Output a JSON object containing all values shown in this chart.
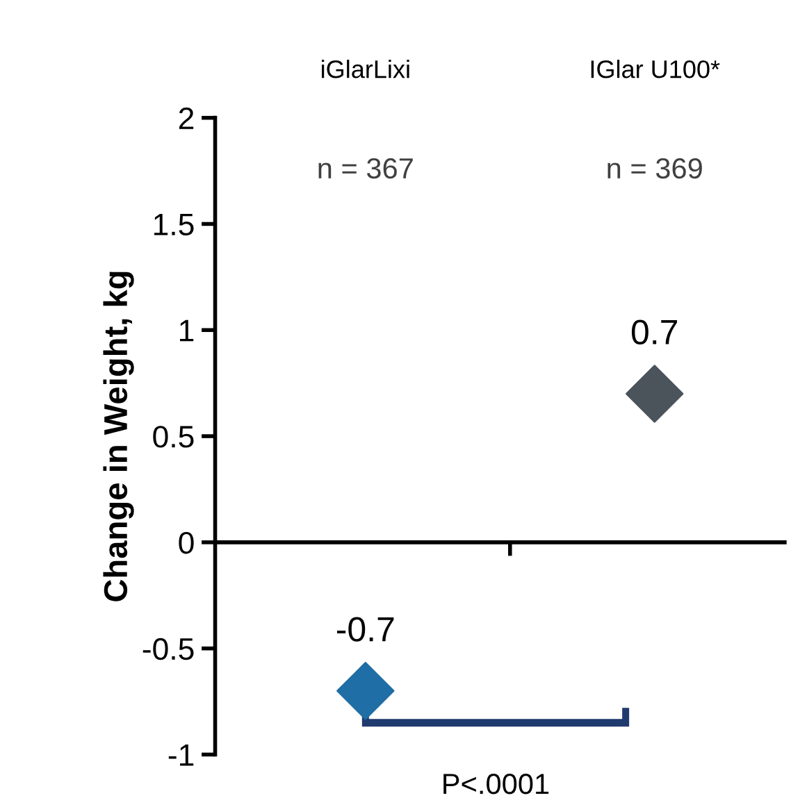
{
  "chart_data": {
    "type": "scatter",
    "ylabel": "Change in Weight, kg",
    "categories": [
      "iGlarLixi",
      "IGlar U100*"
    ],
    "values": [
      -0.7,
      0.7
    ],
    "colors": [
      "#1f6ea5",
      "#4b535b"
    ],
    "marker": "diamond",
    "data_labels": true,
    "ylim": [
      -1,
      2
    ],
    "yticks": [
      -1,
      -0.5,
      0,
      0.5,
      1,
      1.5,
      2
    ],
    "annotations": [
      "n = 367",
      "n = 369",
      "P<.0001"
    ]
  }
}
